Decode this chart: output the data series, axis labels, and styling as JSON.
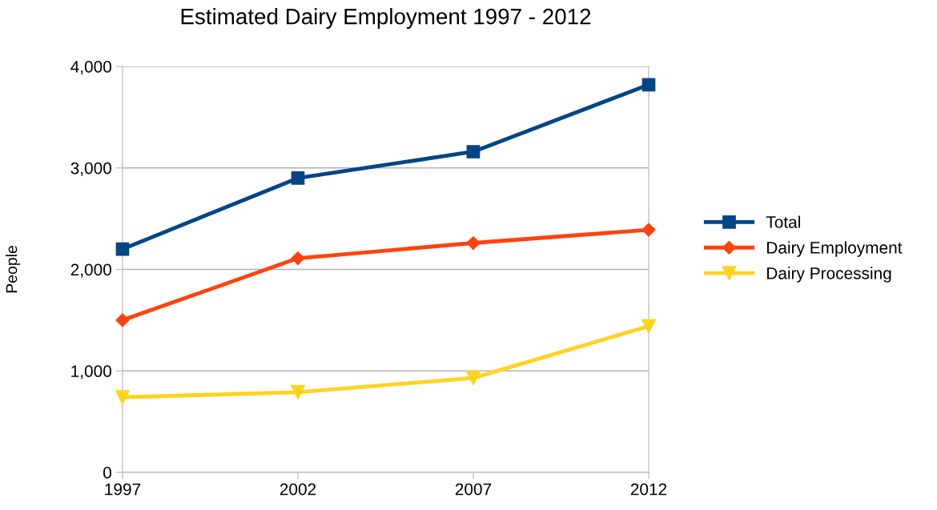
{
  "chart_data": {
    "type": "line",
    "title": "Estimated Dairy Employment 1997 - 2012",
    "ylabel": "People",
    "x": [
      1997,
      2002,
      2007,
      2012
    ],
    "series": [
      {
        "name": "Total",
        "color": "#004586",
        "marker": "square",
        "values": [
          2200,
          2900,
          3160,
          3820
        ]
      },
      {
        "name": "Dairy Employment",
        "color": "#ff420e",
        "marker": "diamond",
        "values": [
          1500,
          2110,
          2260,
          2390
        ]
      },
      {
        "name": "Dairy Processing",
        "color": "#ffd320",
        "marker": "triangle",
        "values": [
          740,
          790,
          930,
          1440
        ]
      }
    ],
    "xlim": [
      1997,
      2012
    ],
    "xticks": [
      1997,
      2002,
      2007,
      2012
    ],
    "ylim": [
      0,
      4000
    ],
    "yticks": [
      {
        "value": 0,
        "label": "0"
      },
      {
        "value": 1000,
        "label": "1,000"
      },
      {
        "value": 2000,
        "label": "2,000"
      },
      {
        "value": 3000,
        "label": "3,000"
      },
      {
        "value": 4000,
        "label": "4,000"
      }
    ],
    "grid": "y",
    "legend": "right",
    "line_style": "solid"
  }
}
